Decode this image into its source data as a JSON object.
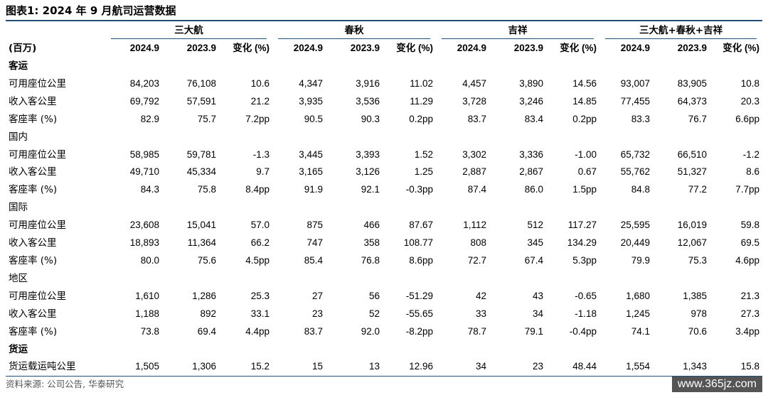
{
  "title": "图表1:  2024 年 9 月航司运营数据",
  "groups": [
    "三大航",
    "春秋",
    "吉祥",
    "三大航+春秋+吉祥"
  ],
  "unit_label": "(百万)",
  "col_headers": [
    "2024.9",
    "2023.9",
    "变化 (%)",
    "2024.9",
    "2023.9",
    "变化 (%)",
    "2024.9",
    "2023.9",
    "变化 (%)",
    "2024.9",
    "2023.9",
    "变化 (%)"
  ],
  "rows": [
    {
      "type": "section",
      "label": "客运"
    },
    {
      "type": "data",
      "label": "可用座位公里",
      "values": [
        "84,203",
        "76,108",
        "10.6",
        "4,347",
        "3,916",
        "11.02",
        "4,457",
        "3,890",
        "14.56",
        "93,007",
        "83,905",
        "10.8"
      ]
    },
    {
      "type": "data",
      "label": "收入客公里",
      "values": [
        "69,792",
        "57,591",
        "21.2",
        "3,935",
        "3,536",
        "11.29",
        "3,728",
        "3,246",
        "14.85",
        "77,455",
        "64,373",
        "20.3"
      ]
    },
    {
      "type": "data",
      "label": "客座率 (%)",
      "values": [
        "82.9",
        "75.7",
        "7.2pp",
        "90.5",
        "90.3",
        "0.2pp",
        "83.7",
        "83.4",
        "0.2pp",
        "83.3",
        "76.7",
        "6.6pp"
      ]
    },
    {
      "type": "sub",
      "label": "国内"
    },
    {
      "type": "data",
      "label": "可用座位公里",
      "values": [
        "58,985",
        "59,781",
        "-1.3",
        "3,445",
        "3,393",
        "1.52",
        "3,302",
        "3,336",
        "-1.00",
        "65,732",
        "66,510",
        "-1.2"
      ]
    },
    {
      "type": "data",
      "label": "收入客公里",
      "values": [
        "49,710",
        "45,334",
        "9.7",
        "3,165",
        "3,126",
        "1.25",
        "2,887",
        "2,867",
        "0.67",
        "55,762",
        "51,327",
        "8.6"
      ]
    },
    {
      "type": "data",
      "label": "客座率 (%)",
      "values": [
        "84.3",
        "75.8",
        "8.4pp",
        "91.9",
        "92.1",
        "-0.3pp",
        "87.4",
        "86.0",
        "1.5pp",
        "84.8",
        "77.2",
        "7.7pp"
      ]
    },
    {
      "type": "sub",
      "label": "国际"
    },
    {
      "type": "data",
      "label": "可用座位公里",
      "values": [
        "23,608",
        "15,041",
        "57.0",
        "875",
        "466",
        "87.67",
        "1,112",
        "512",
        "117.27",
        "25,595",
        "16,019",
        "59.8"
      ]
    },
    {
      "type": "data",
      "label": "收入客公里",
      "values": [
        "18,893",
        "11,364",
        "66.2",
        "747",
        "358",
        "108.77",
        "808",
        "345",
        "134.29",
        "20,449",
        "12,067",
        "69.5"
      ]
    },
    {
      "type": "data",
      "label": "客座率 (%)",
      "values": [
        "80.0",
        "75.6",
        "4.5pp",
        "85.4",
        "76.8",
        "8.6pp",
        "72.7",
        "67.4",
        "5.3pp",
        "79.9",
        "75.3",
        "4.6pp"
      ]
    },
    {
      "type": "sub",
      "label": "地区"
    },
    {
      "type": "data",
      "label": "可用座位公里",
      "values": [
        "1,610",
        "1,286",
        "25.3",
        "27",
        "56",
        "-51.29",
        "42",
        "43",
        "-0.65",
        "1,680",
        "1,385",
        "21.3"
      ]
    },
    {
      "type": "data",
      "label": "收入客公里",
      "values": [
        "1,188",
        "892",
        "33.1",
        "23",
        "52",
        "-55.65",
        "33",
        "34",
        "-1.18",
        "1,245",
        "978",
        "27.3"
      ]
    },
    {
      "type": "data",
      "label": "客座率 (%)",
      "values": [
        "73.8",
        "69.4",
        "4.4pp",
        "83.7",
        "92.0",
        "-8.2pp",
        "78.7",
        "79.1",
        "-0.4pp",
        "74.1",
        "70.6",
        "3.4pp"
      ]
    },
    {
      "type": "section",
      "label": "货运"
    },
    {
      "type": "data",
      "label": "货运载运吨公里",
      "values": [
        "1,505",
        "1,306",
        "15.2",
        "15",
        "13",
        "12.96",
        "34",
        "23",
        "48.44",
        "1,554",
        "1,343",
        "15.8"
      ]
    }
  ],
  "source": "资料来源: 公司公告, 华泰研究",
  "watermark": "www.365jz.com"
}
